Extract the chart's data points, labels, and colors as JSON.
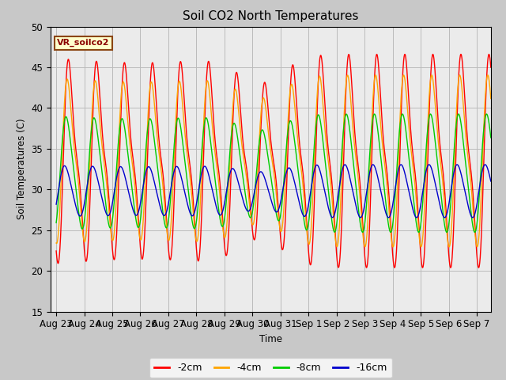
{
  "title": "Soil CO2 North Temperatures",
  "xlabel": "Time",
  "ylabel": "Soil Temperatures (C)",
  "ylim": [
    15,
    50
  ],
  "annotation_text": "VR_soilco2",
  "annotation_bg": "#ffffcc",
  "annotation_edge": "#8B4513",
  "annotation_text_color": "#8B0000",
  "series": [
    {
      "label": "-2cm",
      "color": "#ff0000",
      "amp1": 11.5,
      "amp2": 3.5,
      "mean": 33.5,
      "phase1": 0.0,
      "phase2": 0.0
    },
    {
      "label": "-4cm",
      "color": "#ffa500",
      "amp1": 9.5,
      "amp2": 2.5,
      "mean": 33.5,
      "phase1": 0.3,
      "phase2": 0.3
    },
    {
      "label": "-8cm",
      "color": "#00cc00",
      "amp1": 7.0,
      "amp2": 1.0,
      "mean": 32.0,
      "phase1": 0.7,
      "phase2": 0.7
    },
    {
      "label": "-16cm",
      "color": "#0000cc",
      "amp1": 3.2,
      "amp2": 0.3,
      "mean": 29.8,
      "phase1": 1.1,
      "phase2": 1.1
    }
  ],
  "period_days": 1.0,
  "start_day": 0,
  "end_day": 15.5,
  "n_points": 2000,
  "xtick_labels": [
    "Aug 23",
    "Aug 24",
    "Aug 25",
    "Aug 26",
    "Aug 27",
    "Aug 28",
    "Aug 29",
    "Aug 30",
    "Aug 31",
    "Sep 1",
    "Sep 2",
    "Sep 3",
    "Sep 4",
    "Sep 5",
    "Sep 6",
    "Sep 7"
  ],
  "xtick_positions": [
    0,
    1,
    2,
    3,
    4,
    5,
    6,
    7,
    8,
    9,
    10,
    11,
    12,
    13,
    14,
    15
  ],
  "ytick_positions": [
    15,
    20,
    25,
    30,
    35,
    40,
    45,
    50
  ],
  "grid_color": "#bbbbbb",
  "plot_bg": "#ebebeb",
  "fig_bg": "#c8c8c8",
  "legend_colors": [
    "#ff0000",
    "#ffa500",
    "#00cc00",
    "#0000cc"
  ],
  "legend_labels": [
    "-2cm",
    "-4cm",
    "-8cm",
    "-16cm"
  ]
}
